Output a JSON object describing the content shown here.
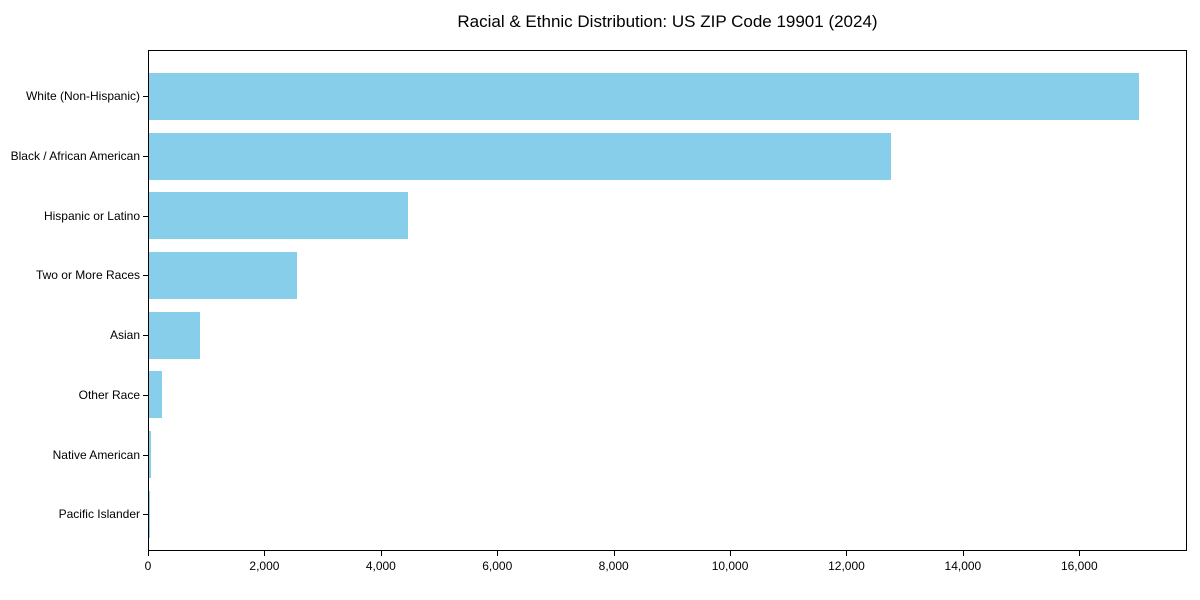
{
  "chart_data": {
    "type": "bar",
    "orientation": "horizontal",
    "title": "Racial & Ethnic Distribution: US ZIP Code 19901 (2024)",
    "categories": [
      "White (Non-Hispanic)",
      "Black / African American",
      "Hispanic or Latino",
      "Two or More Races",
      "Asian",
      "Other Race",
      "Native American",
      "Pacific Islander"
    ],
    "values": [
      17000,
      12740,
      4450,
      2540,
      875,
      230,
      30,
      10
    ],
    "bar_color": "#87CEEB",
    "xlabel": "",
    "ylabel": "",
    "xlim": [
      0,
      17850
    ],
    "xticks": {
      "values": [
        0,
        2000,
        4000,
        6000,
        8000,
        10000,
        12000,
        14000,
        16000
      ],
      "labels": [
        "0",
        "2,000",
        "4,000",
        "6,000",
        "8,000",
        "10,000",
        "12,000",
        "14,000",
        "16,000"
      ]
    },
    "grid": false,
    "legend": null,
    "axis_color": "#000000",
    "background_color": "#ffffff"
  }
}
